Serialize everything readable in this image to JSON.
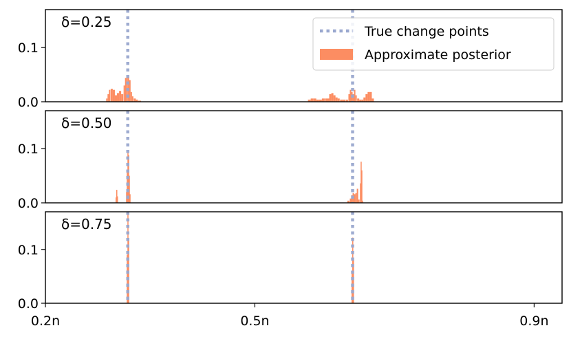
{
  "chart_data": {
    "type": "area",
    "x_ticks": [
      {
        "value": 0.2,
        "label": "0.2n"
      },
      {
        "value": 0.5,
        "label": "0.5n"
      },
      {
        "value": 0.9,
        "label": "0.9n"
      }
    ],
    "xlim": [
      0.2,
      0.94
    ],
    "y_ticks": [
      {
        "value": 0.0,
        "label": "0.0"
      },
      {
        "value": 0.1,
        "label": "0.1"
      }
    ],
    "ylim": [
      0,
      0.17
    ],
    "grid": false,
    "legend": {
      "placement": "top-right",
      "entries": [
        {
          "name": "True change points",
          "style": "dotted-line",
          "color": "#9aa8cf"
        },
        {
          "name": "Approximate posterior",
          "style": "filled",
          "color": "#fc8d62"
        }
      ]
    },
    "change_points": [
      0.318,
      0.64
    ],
    "panels": [
      {
        "label": "δ=0.25",
        "posterior": [
          [
            0.288,
            0.006
          ],
          [
            0.29,
            0.014
          ],
          [
            0.292,
            0.022
          ],
          [
            0.295,
            0.024
          ],
          [
            0.298,
            0.022
          ],
          [
            0.301,
            0.012
          ],
          [
            0.304,
            0.016
          ],
          [
            0.307,
            0.02
          ],
          [
            0.31,
            0.014
          ],
          [
            0.313,
            0.03
          ],
          [
            0.315,
            0.044
          ],
          [
            0.317,
            0.046
          ],
          [
            0.319,
            0.046
          ],
          [
            0.321,
            0.04
          ],
          [
            0.323,
            0.018
          ],
          [
            0.325,
            0.01
          ],
          [
            0.328,
            0.006
          ],
          [
            0.331,
            0.004
          ],
          [
            0.335,
            0.002
          ],
          [
            0.578,
            0.004
          ],
          [
            0.582,
            0.006
          ],
          [
            0.586,
            0.006
          ],
          [
            0.59,
            0.004
          ],
          [
            0.594,
            0.004
          ],
          [
            0.598,
            0.006
          ],
          [
            0.602,
            0.006
          ],
          [
            0.605,
            0.006
          ],
          [
            0.608,
            0.014
          ],
          [
            0.611,
            0.016
          ],
          [
            0.614,
            0.012
          ],
          [
            0.617,
            0.008
          ],
          [
            0.62,
            0.006
          ],
          [
            0.624,
            0.004
          ],
          [
            0.628,
            0.004
          ],
          [
            0.632,
            0.004
          ],
          [
            0.635,
            0.014
          ],
          [
            0.637,
            0.022
          ],
          [
            0.639,
            0.018
          ],
          [
            0.641,
            0.014
          ],
          [
            0.643,
            0.022
          ],
          [
            0.645,
            0.012
          ],
          [
            0.648,
            0.006
          ],
          [
            0.651,
            0.004
          ],
          [
            0.654,
            0.004
          ],
          [
            0.657,
            0.008
          ],
          [
            0.66,
            0.014
          ],
          [
            0.663,
            0.018
          ],
          [
            0.666,
            0.018
          ],
          [
            0.669,
            0.006
          ]
        ]
      },
      {
        "label": "δ=0.50",
        "posterior": [
          [
            0.301,
            0.01
          ],
          [
            0.302,
            0.024
          ],
          [
            0.303,
            0.012
          ],
          [
            0.316,
            0.02
          ],
          [
            0.317,
            0.06
          ],
          [
            0.318,
            0.092
          ],
          [
            0.319,
            0.088
          ],
          [
            0.32,
            0.05
          ],
          [
            0.321,
            0.016
          ],
          [
            0.634,
            0.004
          ],
          [
            0.637,
            0.008
          ],
          [
            0.639,
            0.014
          ],
          [
            0.641,
            0.018
          ],
          [
            0.643,
            0.016
          ],
          [
            0.645,
            0.018
          ],
          [
            0.647,
            0.026
          ],
          [
            0.649,
            0.006
          ],
          [
            0.651,
            0.036
          ],
          [
            0.652,
            0.076
          ],
          [
            0.653,
            0.06
          ],
          [
            0.654,
            0.004
          ]
        ]
      },
      {
        "label": "δ=0.75",
        "posterior": [
          [
            0.317,
            0.09
          ],
          [
            0.318,
            0.17
          ],
          [
            0.319,
            0.12
          ],
          [
            0.639,
            0.06
          ],
          [
            0.64,
            0.122
          ],
          [
            0.641,
            0.08
          ]
        ]
      }
    ]
  }
}
